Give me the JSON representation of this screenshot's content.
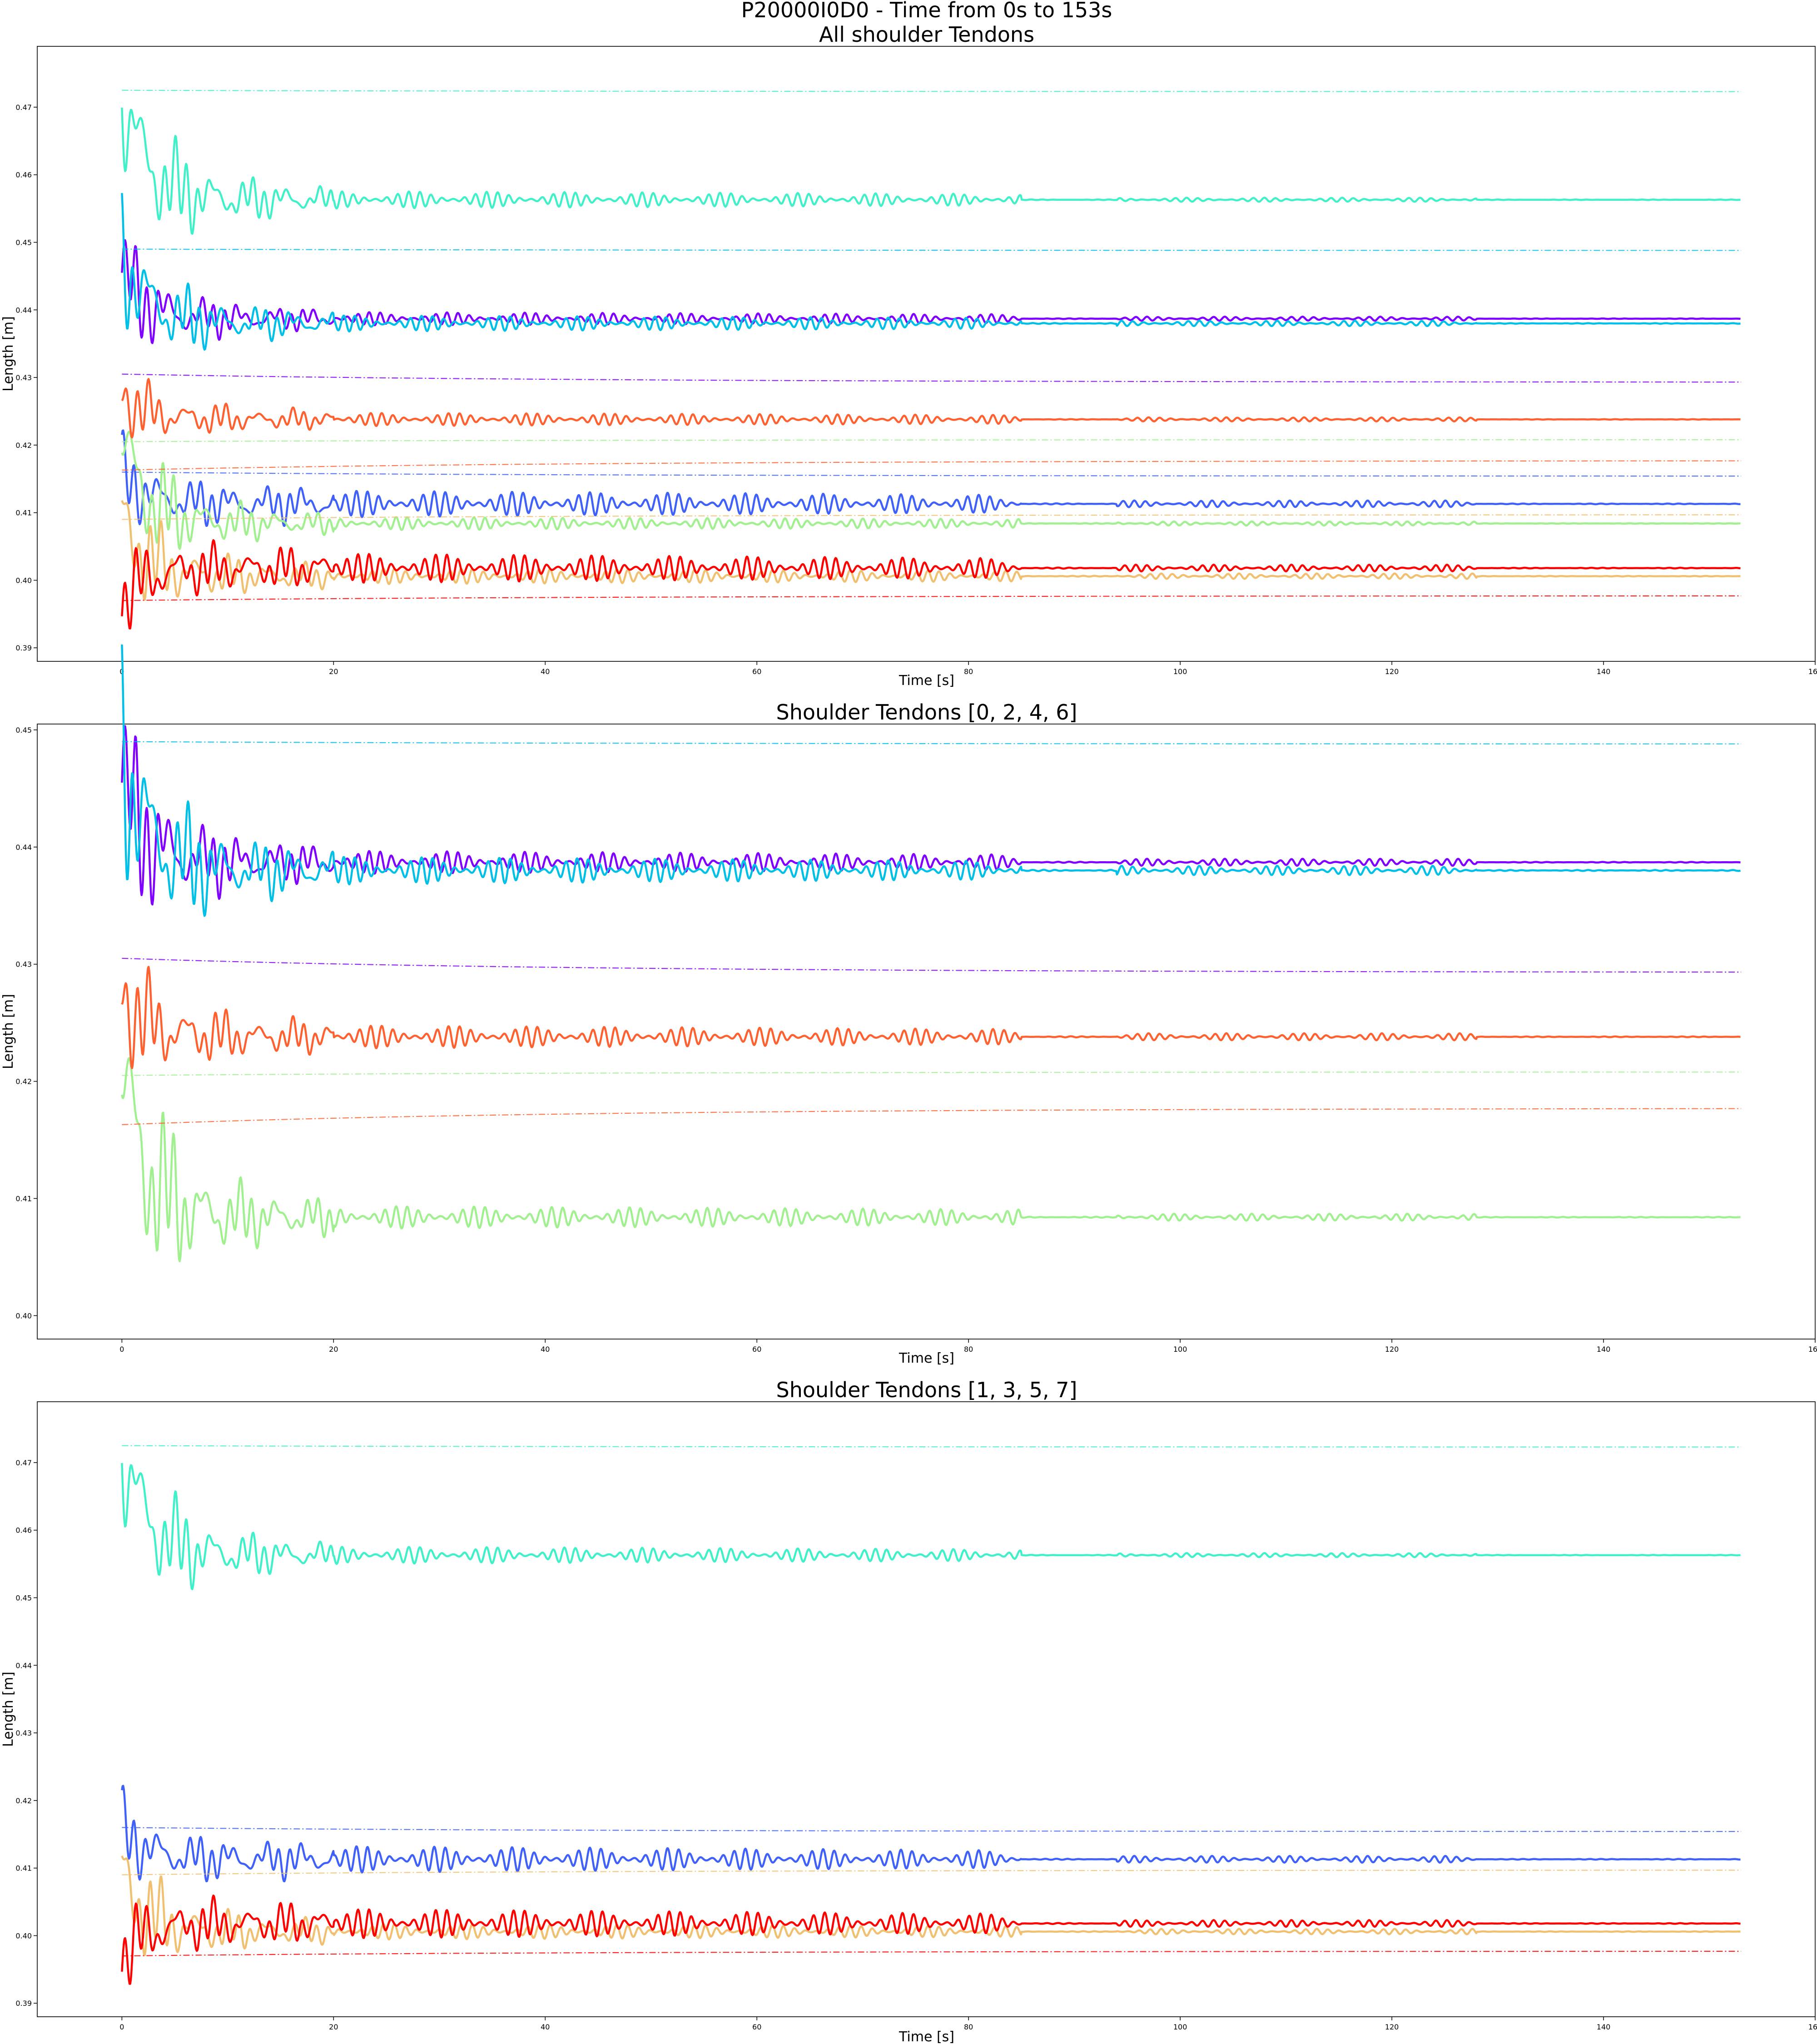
{
  "figure": {
    "suptitle": "P20000I0D0 - Time from 0s to 153s"
  },
  "colors": {
    "t0": "#8000ff",
    "t1": "#3f61f9",
    "t2": "#00c0e8",
    "t3": "#40f0c8",
    "t4": "#a0f090",
    "t5": "#f0c070",
    "t6": "#ff6030",
    "t7": "#ff0000"
  },
  "chart_data": [
    {
      "type": "line",
      "title": "All shoulder Tendons",
      "xlabel": "Time [s]",
      "ylabel": "Length [m]",
      "xlim": [
        -8,
        160
      ],
      "ylim": [
        0.388,
        0.479
      ],
      "xticks": [
        "0",
        "20",
        "40",
        "60",
        "80",
        "100",
        "120",
        "140",
        "160"
      ],
      "yticks": [
        "0.39",
        "0.40",
        "0.41",
        "0.42",
        "0.43",
        "0.44",
        "0.45",
        "0.46",
        "0.47"
      ],
      "grid": false,
      "tendons": [
        0,
        1,
        2,
        3,
        4,
        5,
        6,
        7
      ]
    },
    {
      "type": "line",
      "title": "Shoulder Tendons [0, 2, 4, 6]",
      "xlabel": "Time [s]",
      "ylabel": "Length [m]",
      "xlim": [
        -8,
        160
      ],
      "ylim": [
        0.398,
        0.4505
      ],
      "xticks": [
        "0",
        "20",
        "40",
        "60",
        "80",
        "100",
        "120",
        "140",
        "160"
      ],
      "yticks": [
        "0.40",
        "0.41",
        "0.42",
        "0.43",
        "0.44",
        "0.45"
      ],
      "grid": false,
      "tendons": [
        0,
        2,
        4,
        6
      ]
    },
    {
      "type": "line",
      "title": "Shoulder Tendons  [1, 3, 5, 7]",
      "xlabel": "Time [s]",
      "ylabel": "Length [m]",
      "xlim": [
        -8,
        160
      ],
      "ylim": [
        0.388,
        0.479
      ],
      "xticks": [
        "0",
        "20",
        "40",
        "60",
        "80",
        "100",
        "120",
        "140",
        "160"
      ],
      "yticks": [
        "0.39",
        "0.40",
        "0.41",
        "0.42",
        "0.43",
        "0.44",
        "0.45",
        "0.46",
        "0.47"
      ],
      "grid": false,
      "tendons": [
        1,
        3,
        5,
        7
      ]
    }
  ],
  "series": [
    {
      "id": 0,
      "color_key": "t0",
      "actual": {
        "start": 0.4455,
        "end": 0.4387,
        "amp0": 0.0065,
        "amp_mid": 0.001,
        "amp_late": 0.0003,
        "noise": 1.0
      },
      "reference": {
        "start": 0.4305,
        "end": 0.4293
      }
    },
    {
      "id": 1,
      "color_key": "t1",
      "actual": {
        "start": 0.416,
        "end": 0.4113,
        "amp0": 0.0045,
        "amp_mid": 0.002,
        "amp_late": 0.0005,
        "noise": 1.0
      },
      "reference": {
        "start": 0.416,
        "end": 0.4154
      }
    },
    {
      "id": 2,
      "color_key": "t2",
      "actual": {
        "start": 0.449,
        "end": 0.438,
        "amp0": 0.0085,
        "amp_mid": 0.0012,
        "amp_late": 0.0004,
        "noise": 1.0
      },
      "reference": {
        "start": 0.449,
        "end": 0.4488
      }
    },
    {
      "id": 3,
      "color_key": "t3",
      "actual": {
        "start": 0.4725,
        "end": 0.4563,
        "amp0": 0.011,
        "amp_mid": 0.0013,
        "amp_late": 0.0003,
        "noise": 1.0
      },
      "reference": {
        "start": 0.4725,
        "end": 0.4723
      }
    },
    {
      "id": 4,
      "color_key": "t4",
      "actual": {
        "start": 0.4205,
        "end": 0.4084,
        "amp0": 0.0095,
        "amp_mid": 0.001,
        "amp_late": 0.0003,
        "noise": 1.0
      },
      "reference": {
        "start": 0.4205,
        "end": 0.4208
      }
    },
    {
      "id": 5,
      "color_key": "t5",
      "actual": {
        "start": 0.409,
        "end": 0.4006,
        "amp0": 0.0075,
        "amp_mid": 0.0012,
        "amp_late": 0.0004,
        "noise": 1.0
      },
      "reference": {
        "start": 0.409,
        "end": 0.4097
      }
    },
    {
      "id": 6,
      "color_key": "t6",
      "actual": {
        "start": 0.4275,
        "end": 0.4238,
        "amp0": 0.0045,
        "amp_mid": 0.001,
        "amp_late": 0.0003,
        "noise": 1.0
      },
      "reference": {
        "start": 0.4163,
        "end": 0.4177
      }
    },
    {
      "id": 7,
      "color_key": "t7",
      "actual": {
        "start": 0.397,
        "end": 0.4018,
        "amp0": 0.005,
        "amp_mid": 0.0022,
        "amp_late": 0.0005,
        "noise": 1.0
      },
      "reference": {
        "start": 0.397,
        "end": 0.3977
      }
    }
  ],
  "time": {
    "start": 0,
    "end": 153
  }
}
